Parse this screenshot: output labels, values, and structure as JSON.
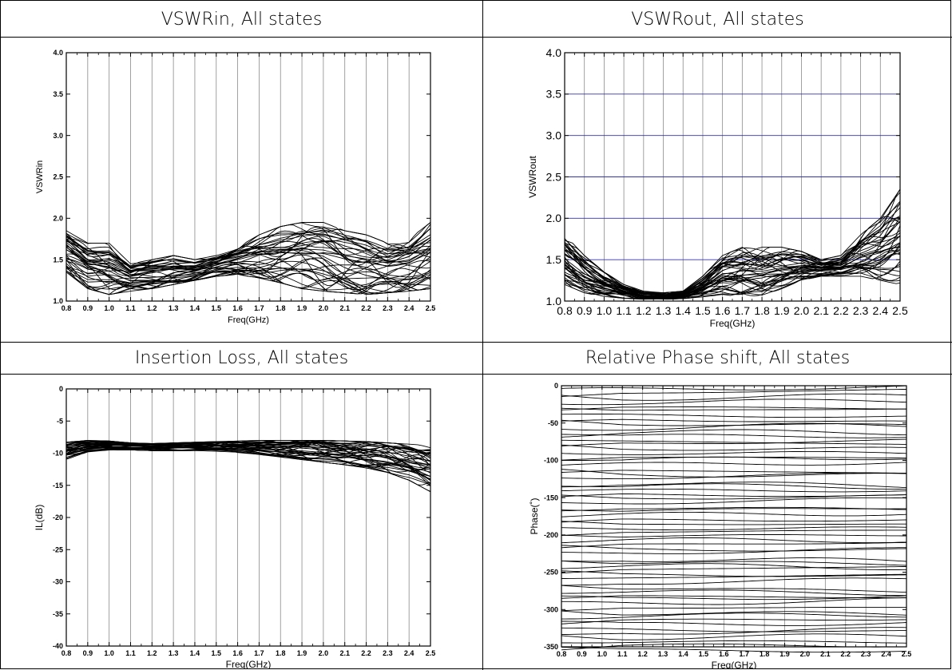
{
  "chart_data": [
    {
      "type": "line",
      "title": "VSWRin, All states",
      "xlabel": "Freq(GHz)",
      "ylabel": "VSWRin",
      "xlim": [
        0.8,
        2.5
      ],
      "ylim": [
        1.0,
        4.0
      ],
      "x_ticks": [
        "0.8",
        "0.9",
        "1.0",
        "1.1",
        "1.2",
        "1.3",
        "1.4",
        "1.5",
        "1.6",
        "1.7",
        "1.8",
        "1.9",
        "2.0",
        "2.1",
        "2.2",
        "2.3",
        "2.4",
        "2.5"
      ],
      "y_ticks": [
        "1.0",
        "1.5",
        "2.0",
        "2.5",
        "3.0",
        "3.5",
        "4.0"
      ],
      "grid": "vertical",
      "series_count": 40,
      "envelope": {
        "x": [
          0.8,
          0.9,
          1.0,
          1.1,
          1.2,
          1.3,
          1.4,
          1.5,
          1.6,
          1.7,
          1.8,
          1.9,
          2.0,
          2.1,
          2.2,
          2.3,
          2.4,
          2.5
        ],
        "low": [
          1.35,
          1.15,
          1.08,
          1.12,
          1.15,
          1.2,
          1.25,
          1.3,
          1.32,
          1.28,
          1.22,
          1.15,
          1.12,
          1.1,
          1.08,
          1.1,
          1.12,
          1.15
        ],
        "high": [
          1.85,
          1.7,
          1.7,
          1.45,
          1.5,
          1.55,
          1.5,
          1.55,
          1.65,
          1.8,
          1.9,
          1.95,
          1.95,
          1.85,
          1.8,
          1.7,
          1.75,
          1.95
        ]
      }
    },
    {
      "type": "line",
      "title": "VSWRout, All states",
      "xlabel": "Freq(GHz)",
      "ylabel": "VSWRout",
      "xlim": [
        0.8,
        2.5
      ],
      "ylim": [
        1.0,
        4.0
      ],
      "x_ticks": [
        "0.8",
        "0.9",
        "1.0",
        "1.1",
        "1.2",
        "1.3",
        "1.4",
        "1.5",
        "1.6",
        "1.7",
        "1.8",
        "1.9",
        "2.0",
        "2.1",
        "2.2",
        "2.3",
        "2.4",
        "2.5"
      ],
      "y_ticks": [
        "1.0",
        "1.5",
        "2.0",
        "2.5",
        "3.0",
        "3.5",
        "4.0"
      ],
      "grid": "both",
      "series_count": 40,
      "envelope": {
        "x": [
          0.8,
          0.9,
          1.0,
          1.1,
          1.2,
          1.3,
          1.4,
          1.5,
          1.6,
          1.7,
          1.8,
          1.9,
          2.0,
          2.1,
          2.2,
          2.3,
          2.4,
          2.5
        ],
        "low": [
          1.2,
          1.1,
          1.05,
          1.03,
          1.02,
          1.02,
          1.03,
          1.05,
          1.08,
          1.05,
          1.05,
          1.15,
          1.25,
          1.3,
          1.3,
          1.3,
          1.25,
          1.2
        ],
        "high": [
          1.8,
          1.55,
          1.35,
          1.2,
          1.12,
          1.1,
          1.12,
          1.3,
          1.55,
          1.65,
          1.65,
          1.65,
          1.6,
          1.5,
          1.55,
          1.8,
          2.0,
          2.35
        ]
      }
    },
    {
      "type": "line",
      "title": "Insertion Loss, All states",
      "xlabel": "Freq(GHz)",
      "ylabel": "IL(dB)",
      "xlim": [
        0.8,
        2.5
      ],
      "ylim": [
        -40,
        0
      ],
      "x_ticks": [
        "0.8",
        "0.9",
        "1.0",
        "1.1",
        "1.2",
        "1.3",
        "1.4",
        "1.5",
        "1.6",
        "1.7",
        "1.8",
        "1.9",
        "2.0",
        "2.1",
        "2.2",
        "2.3",
        "2.4",
        "2.5"
      ],
      "y_ticks": [
        "-40",
        "-35",
        "-30",
        "-25",
        "-20",
        "-15",
        "-10",
        "-5",
        "0"
      ],
      "grid": "vertical",
      "series_count": 40,
      "envelope": {
        "x": [
          0.8,
          0.9,
          1.0,
          1.1,
          1.2,
          1.3,
          1.4,
          1.5,
          1.6,
          1.7,
          1.8,
          1.9,
          2.0,
          2.1,
          2.2,
          2.3,
          2.4,
          2.5
        ],
        "low": [
          -11.0,
          -9.8,
          -9.5,
          -9.5,
          -9.6,
          -9.6,
          -9.6,
          -9.7,
          -9.9,
          -10.2,
          -10.6,
          -11.0,
          -11.4,
          -11.8,
          -12.3,
          -13.0,
          -14.2,
          -16.0
        ],
        "high": [
          -8.3,
          -8.0,
          -8.1,
          -8.4,
          -8.5,
          -8.4,
          -8.3,
          -8.2,
          -8.1,
          -8.0,
          -8.0,
          -8.0,
          -8.0,
          -8.1,
          -8.2,
          -8.4,
          -8.6,
          -8.8
        ]
      }
    },
    {
      "type": "line",
      "title": "Relative Phase shift, All states",
      "xlabel": "Freq(GHz)",
      "ylabel": "Phase(˚)",
      "xlim": [
        0.8,
        2.5
      ],
      "ylim": [
        -350,
        0
      ],
      "x_ticks": [
        "0.8",
        "0.9",
        "1.0",
        "1.1",
        "1.2",
        "1.3",
        "1.4",
        "1.5",
        "1.6",
        "1.7",
        "1.8",
        "1.9",
        "2.0",
        "2.1",
        "2.2",
        "2.3",
        "2.4",
        "2.5"
      ],
      "y_ticks": [
        "-350",
        "-300",
        "-250",
        "-200",
        "-150",
        "-100",
        "-50",
        "0"
      ],
      "grid": "vertical",
      "series_count": 64,
      "step_deg": 5.625
    }
  ]
}
